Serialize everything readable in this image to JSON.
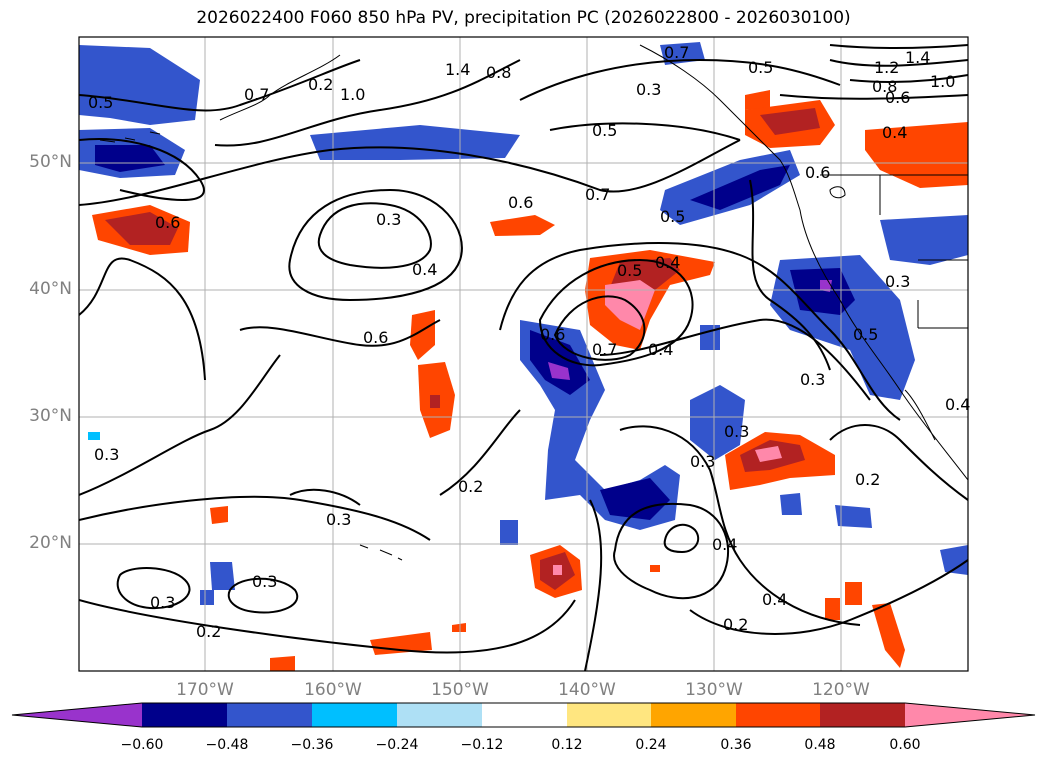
{
  "title": "2026022400 F060 850 hPa PV, precipitation PC (2026022800 - 2026030100)",
  "lat_labels": [
    "50°N",
    "40°N",
    "30°N",
    "20°N"
  ],
  "lon_labels": [
    "170°W",
    "160°W",
    "150°W",
    "140°W",
    "130°W",
    "120°W"
  ],
  "colorbar": {
    "ticks": [
      "−0.60",
      "−0.48",
      "−0.36",
      "−0.24",
      "−0.12",
      "0.12",
      "0.24",
      "0.36",
      "0.48",
      "0.60"
    ],
    "colors": [
      "#9933cc",
      "#00008b",
      "#3355cc",
      "#00bfff",
      "#aee0f5",
      "#ffffff",
      "#ffe680",
      "#ffa500",
      "#ff4500",
      "#b22222",
      "#ff88aa"
    ]
  },
  "contour_labels": [
    "0.5",
    "0.7",
    "1.0",
    "1.4",
    "0.8",
    "0.7",
    "0.5",
    "1.4",
    "1.2",
    "1.0",
    "0.8",
    "0.6",
    "0.3",
    "0.5",
    "0.4",
    "0.6",
    "0.6",
    "0.7",
    "0.5",
    "0.6",
    "0.3",
    "0.4",
    "0.5",
    "0.4",
    "0.3",
    "0.6",
    "0.6",
    "0.7",
    "0.4",
    "0.5",
    "0.3",
    "0.3",
    "0.4",
    "0.3",
    "0.2",
    "0.3",
    "0.3",
    "0.2",
    "0.2",
    "0.3",
    "0.3",
    "0.2",
    "0.4",
    "0.4",
    "0.2"
  ]
}
